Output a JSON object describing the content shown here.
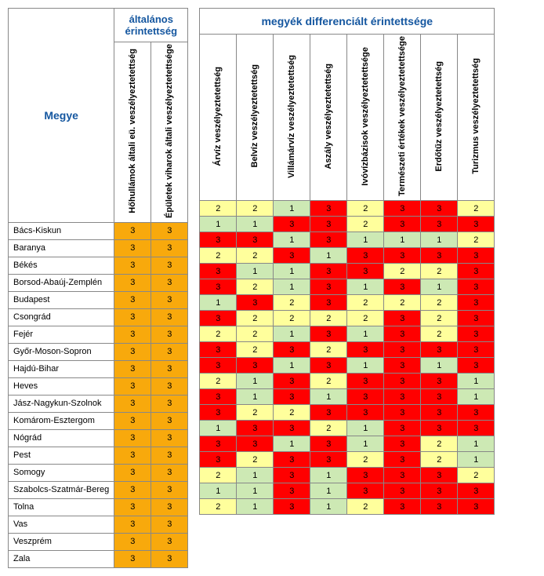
{
  "colors": {
    "level1": "#cde9b4",
    "level2": "#ffff9c",
    "level3": "#ff0000",
    "general": "#f8a90c",
    "header_text": "#1557a0"
  },
  "left": {
    "megye_label": "Megye",
    "group_label": "általános érintettség",
    "columns": [
      "Hőhullámok általi eü. veszélyeztetettség",
      "Épületek viharok általi veszélyeztetettsége"
    ]
  },
  "right": {
    "group_label": "megyék differenciált érintettsége",
    "columns": [
      "Árvíz veszélyeztetettség",
      "Belvíz veszélyeztetettség",
      "Villámárvíz veszélyeztetettség",
      "Aszály veszélyeztetettség",
      "Ivóvízbázisok veszélyeztetettsége",
      "Természeti értékek veszélyeztetettsége",
      "Erdőtűz veszélyeztetettség",
      "Turizmus veszélyeztetettség"
    ]
  },
  "rows": [
    {
      "name": "Bács-Kiskun",
      "gen": [
        3,
        3
      ],
      "diff": [
        2,
        2,
        1,
        3,
        2,
        3,
        3,
        2
      ]
    },
    {
      "name": "Baranya",
      "gen": [
        3,
        3
      ],
      "diff": [
        1,
        1,
        3,
        3,
        2,
        3,
        3,
        3
      ]
    },
    {
      "name": "Békés",
      "gen": [
        3,
        3
      ],
      "diff": [
        3,
        3,
        1,
        3,
        1,
        1,
        1,
        2
      ]
    },
    {
      "name": "Borsod-Abaúj-Zemplén",
      "gen": [
        3,
        3
      ],
      "diff": [
        2,
        2,
        3,
        1,
        3,
        3,
        3,
        3
      ]
    },
    {
      "name": "Budapest",
      "gen": [
        3,
        3
      ],
      "diff": [
        3,
        1,
        1,
        3,
        3,
        2,
        2,
        3
      ]
    },
    {
      "name": "Csongrád",
      "gen": [
        3,
        3
      ],
      "diff": [
        3,
        2,
        1,
        3,
        1,
        3,
        1,
        3
      ]
    },
    {
      "name": "Fejér",
      "gen": [
        3,
        3
      ],
      "diff": [
        1,
        3,
        2,
        3,
        2,
        2,
        2,
        3
      ]
    },
    {
      "name": "Győr-Moson-Sopron",
      "gen": [
        3,
        3
      ],
      "diff": [
        3,
        2,
        2,
        2,
        2,
        3,
        2,
        3
      ]
    },
    {
      "name": "Hajdú-Bihar",
      "gen": [
        3,
        3
      ],
      "diff": [
        2,
        2,
        1,
        3,
        1,
        3,
        2,
        3
      ]
    },
    {
      "name": "Heves",
      "gen": [
        3,
        3
      ],
      "diff": [
        3,
        2,
        3,
        2,
        3,
        3,
        3,
        3
      ]
    },
    {
      "name": "Jász-Nagykun-Szolnok",
      "gen": [
        3,
        3
      ],
      "diff": [
        3,
        3,
        1,
        3,
        1,
        3,
        1,
        3
      ]
    },
    {
      "name": "Komárom-Esztergom",
      "gen": [
        3,
        3
      ],
      "diff": [
        2,
        1,
        3,
        2,
        3,
        3,
        3,
        1
      ]
    },
    {
      "name": "Nógrád",
      "gen": [
        3,
        3
      ],
      "diff": [
        3,
        1,
        3,
        1,
        3,
        3,
        3,
        1
      ]
    },
    {
      "name": "Pest",
      "gen": [
        3,
        3
      ],
      "diff": [
        3,
        2,
        2,
        3,
        3,
        3,
        3,
        3
      ]
    },
    {
      "name": "Somogy",
      "gen": [
        3,
        3
      ],
      "diff": [
        1,
        3,
        3,
        2,
        1,
        3,
        3,
        3
      ]
    },
    {
      "name": "Szabolcs-Szatmár-Bereg",
      "gen": [
        3,
        3
      ],
      "diff": [
        3,
        3,
        1,
        3,
        1,
        3,
        2,
        1
      ]
    },
    {
      "name": "Tolna",
      "gen": [
        3,
        3
      ],
      "diff": [
        3,
        2,
        3,
        3,
        2,
        3,
        2,
        1
      ]
    },
    {
      "name": "Vas",
      "gen": [
        3,
        3
      ],
      "diff": [
        2,
        1,
        3,
        1,
        3,
        3,
        3,
        2
      ]
    },
    {
      "name": "Veszprém",
      "gen": [
        3,
        3
      ],
      "diff": [
        1,
        1,
        3,
        1,
        3,
        3,
        3,
        3
      ]
    },
    {
      "name": "Zala",
      "gen": [
        3,
        3
      ],
      "diff": [
        2,
        1,
        3,
        1,
        2,
        3,
        3,
        3
      ]
    }
  ]
}
